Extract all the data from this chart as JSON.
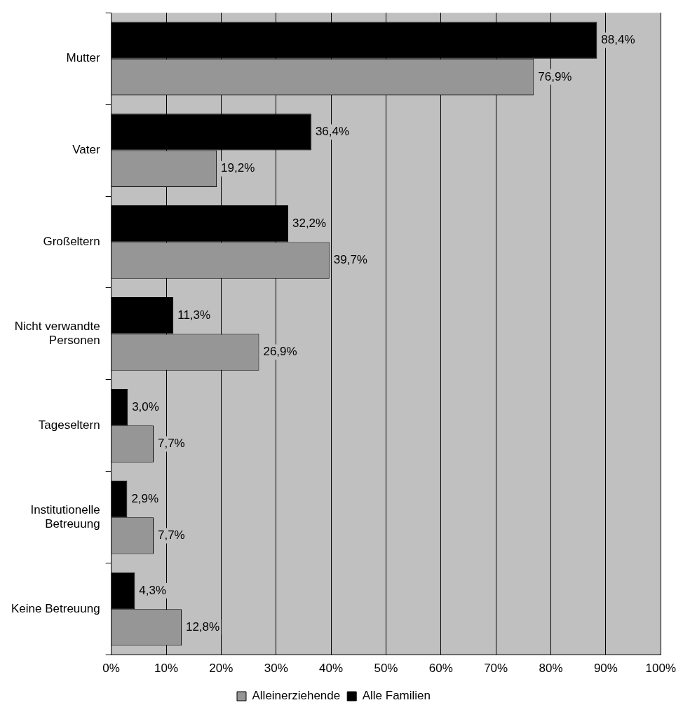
{
  "chart_data": {
    "type": "bar",
    "orientation": "horizontal",
    "categories": [
      "Mutter",
      "Vater",
      "Großeltern",
      "Nicht verwandte Personen",
      "Tageseltern",
      "Institutionelle Betreuung",
      "Keine Betreuung"
    ],
    "series": [
      {
        "name": "Alle Familien",
        "color": "#000000",
        "values": [
          88.4,
          36.4,
          32.2,
          11.3,
          3.0,
          2.9,
          4.3
        ],
        "value_labels": [
          "88,4%",
          "36,4%",
          "32,2%",
          "11,3%",
          "3,0%",
          "2,9%",
          "4,3%"
        ]
      },
      {
        "name": "Alleinerziehende",
        "color": "#969696",
        "values": [
          76.9,
          19.2,
          39.7,
          26.9,
          7.7,
          7.7,
          12.8
        ],
        "value_labels": [
          "76,9%",
          "19,2%",
          "39,7%",
          "26,9%",
          "7,7%",
          "7,7%",
          "12,8%"
        ]
      }
    ],
    "xlim": [
      0,
      100
    ],
    "xticks": [
      {
        "value": 0,
        "label": "0%"
      },
      {
        "value": 10,
        "label": "10%"
      },
      {
        "value": 20,
        "label": "20%"
      },
      {
        "value": 30,
        "label": "30%"
      },
      {
        "value": 40,
        "label": "40%"
      },
      {
        "value": 50,
        "label": "50%"
      },
      {
        "value": 60,
        "label": "60%"
      },
      {
        "value": 70,
        "label": "70%"
      },
      {
        "value": 80,
        "label": "80%"
      },
      {
        "value": 90,
        "label": "90%"
      },
      {
        "value": 100,
        "label": "100%"
      }
    ],
    "grid": "x",
    "legend": "bottom"
  }
}
